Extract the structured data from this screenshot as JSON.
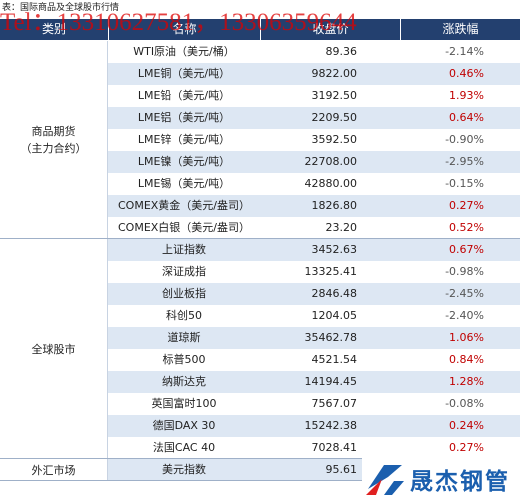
{
  "header": {
    "caption": "表：国际商品及全球股市行情",
    "watermark": "Tel：13310627581，13306359644"
  },
  "table": {
    "columns": [
      "类别",
      "名称",
      "收盘价",
      "涨跌幅"
    ],
    "groups": [
      {
        "category": [
          "商品期货",
          "（主力合约）"
        ],
        "rows": [
          [
            "WTI原油（美元/桶）",
            "89.36",
            "-2.14%"
          ],
          [
            "LME铜（美元/吨）",
            "9822.00",
            "0.46%"
          ],
          [
            "LME铅（美元/吨）",
            "3192.50",
            "1.93%"
          ],
          [
            "LME铝（美元/吨）",
            "2209.50",
            "0.64%"
          ],
          [
            "LME锌（美元/吨）",
            "3592.50",
            "-0.90%"
          ],
          [
            "LME镍（美元/吨）",
            "22708.00",
            "-2.95%"
          ],
          [
            "LME锡（美元/吨）",
            "42880.00",
            "-0.15%"
          ],
          [
            "COMEX黄金（美元/盎司）",
            "1826.80",
            "0.27%"
          ],
          [
            "COMEX白银（美元/盎司）",
            "23.20",
            "0.52%"
          ]
        ]
      },
      {
        "category": [
          "全球股市"
        ],
        "rows": [
          [
            "上证指数",
            "3452.63",
            "0.67%"
          ],
          [
            "深证成指",
            "13325.41",
            "-0.98%"
          ],
          [
            "创业板指",
            "2846.48",
            "-2.45%"
          ],
          [
            "科创50",
            "1204.05",
            "-2.40%"
          ],
          [
            "道琼斯",
            "35462.78",
            "1.06%"
          ],
          [
            "标普500",
            "4521.54",
            "0.84%"
          ],
          [
            "纳斯达克",
            "14194.45",
            "1.28%"
          ],
          [
            "英国富时100",
            "7567.07",
            "-0.08%"
          ],
          [
            "德国DAX 30",
            "15242.38",
            "0.24%"
          ],
          [
            "法国CAC 40",
            "7028.41",
            "0.27%"
          ]
        ]
      },
      {
        "category": [
          "外汇市场"
        ],
        "rows": [
          [
            "美元指数",
            "95.61",
            ""
          ]
        ]
      }
    ]
  },
  "logo": {
    "text": "晟杰钢管"
  }
}
